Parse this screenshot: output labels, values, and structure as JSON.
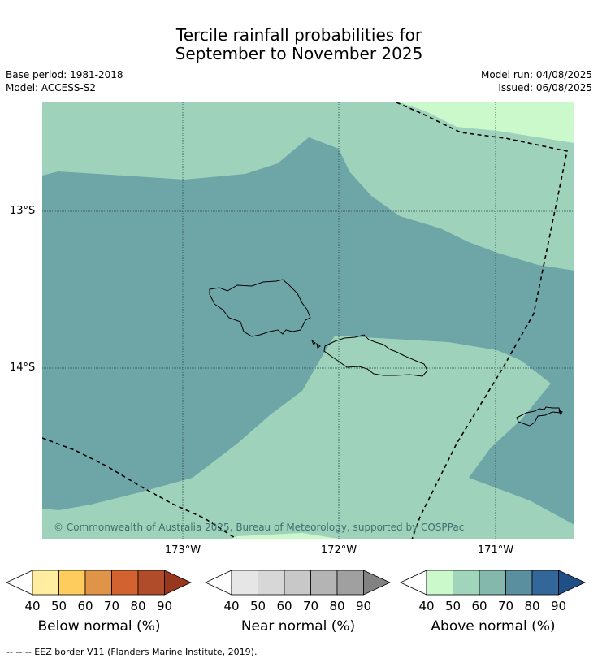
{
  "title_line1": "Tercile rainfall probabilities for",
  "title_line2": "September to November 2025",
  "meta": {
    "base_period": "Base period: 1981-2018",
    "model": "Model: ACCESS-S2",
    "model_run": "Model run: 04/08/2025",
    "issued": "Issued: 06/08/2025"
  },
  "map": {
    "lat_labels": [
      "13°S",
      "14°S"
    ],
    "lon_labels": [
      "173°W",
      "172°W",
      "171°W"
    ],
    "copyright": "© Commonwealth of Australia 2025, Bureau of Meteorology, supported by COSPPac",
    "colors": {
      "above_50_60": "#9fd2bb",
      "above_60_70": "#6ea5a7",
      "above_40_50": "#ccf9cc",
      "grid": "#2f4f4f",
      "eez": "#000000"
    }
  },
  "legends": [
    {
      "title": "Below normal (%)",
      "ticks": [
        "40",
        "50",
        "60",
        "70",
        "80",
        "90"
      ],
      "colors": [
        "#ffffff",
        "#ffeda0",
        "#fecc5c",
        "#e09448",
        "#d2622f",
        "#b14c2a",
        "#99361e"
      ]
    },
    {
      "title": "Near normal (%)",
      "ticks": [
        "40",
        "50",
        "60",
        "70",
        "80",
        "90"
      ],
      "colors": [
        "#ffffff",
        "#e6e6e6",
        "#d7d7d7",
        "#c8c8c8",
        "#b4b4b4",
        "#a0a0a0",
        "#828282"
      ]
    },
    {
      "title": "Above normal (%)",
      "ticks": [
        "40",
        "50",
        "60",
        "70",
        "80",
        "90"
      ],
      "colors": [
        "#ffffff",
        "#ccf9cc",
        "#a0d4bb",
        "#84b8ad",
        "#5a8fa0",
        "#336699",
        "#1f4f85"
      ]
    }
  ],
  "footer": "--  --  -- EEZ border V11 (Flanders Marine Institute, 2019)."
}
